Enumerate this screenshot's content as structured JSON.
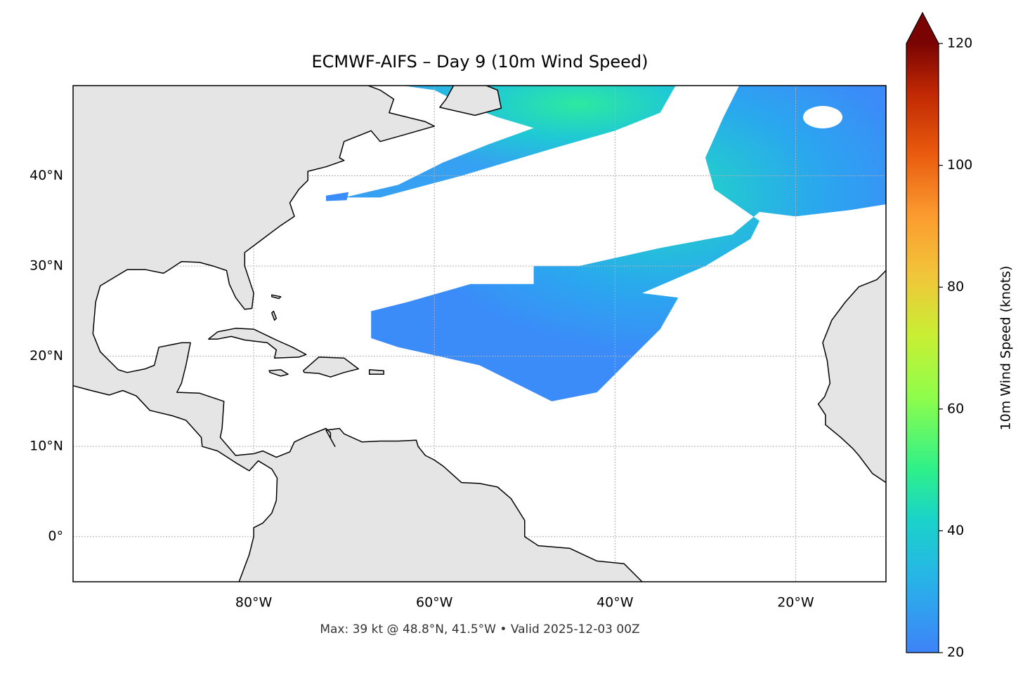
{
  "chart_data": {
    "type": "map",
    "title": "ECMWF-AIFS – Day 9 (10m Wind Speed)",
    "footer": "Max: 39 kt @ 48.8°N, 41.5°W • Valid 2025-12-03 00Z",
    "xlim": [
      -100,
      -10
    ],
    "ylim": [
      -5,
      50
    ],
    "xticks": [
      {
        "value": -80,
        "label": "80°W"
      },
      {
        "value": -60,
        "label": "60°W"
      },
      {
        "value": -40,
        "label": "40°W"
      },
      {
        "value": -20,
        "label": "20°W"
      }
    ],
    "yticks": [
      {
        "value": 0,
        "label": "0°"
      },
      {
        "value": 10,
        "label": "10°N"
      },
      {
        "value": 20,
        "label": "20°N"
      },
      {
        "value": 30,
        "label": "30°N"
      },
      {
        "value": 40,
        "label": "40°N"
      }
    ],
    "grid": true,
    "colorbar": {
      "label": "10m Wind Speed (knots)",
      "clim": [
        20,
        120
      ],
      "ticks": [
        20,
        40,
        60,
        80,
        100,
        120
      ],
      "extend": "max"
    }
  }
}
